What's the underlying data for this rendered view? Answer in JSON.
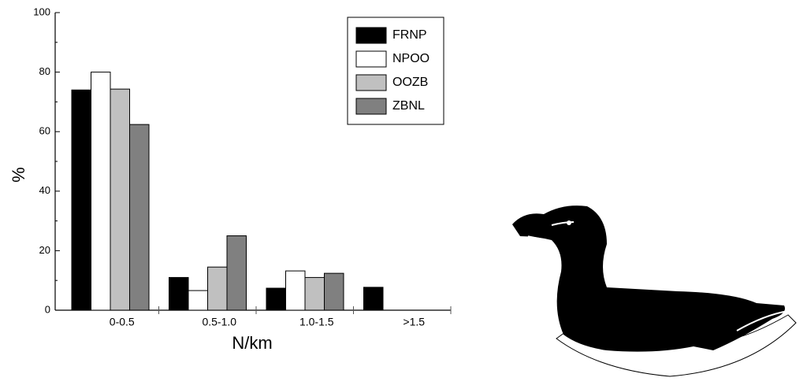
{
  "chart_data": {
    "type": "bar",
    "x_label": "N/km",
    "y_label": "%",
    "categories": [
      "0-0.5",
      "0.5-1.0",
      "1.0-1.5",
      ">1.5"
    ],
    "series": [
      {
        "name": "FRNP",
        "color": "#000000",
        "values": [
          74,
          11,
          7.4,
          7.7
        ]
      },
      {
        "name": "NPOO",
        "color": "#ffffff",
        "values": [
          80,
          6.6,
          13.2,
          0
        ]
      },
      {
        "name": "OOZB",
        "color": "#c0c0c0",
        "values": [
          74.3,
          14.5,
          11,
          0
        ]
      },
      {
        "name": "ZBNL",
        "color": "#808080",
        "values": [
          62.4,
          25,
          12.4,
          0
        ]
      }
    ],
    "ylim": [
      0,
      100
    ],
    "yticks": [
      0,
      20,
      40,
      60,
      80,
      100
    ],
    "legend": "top-right"
  }
}
